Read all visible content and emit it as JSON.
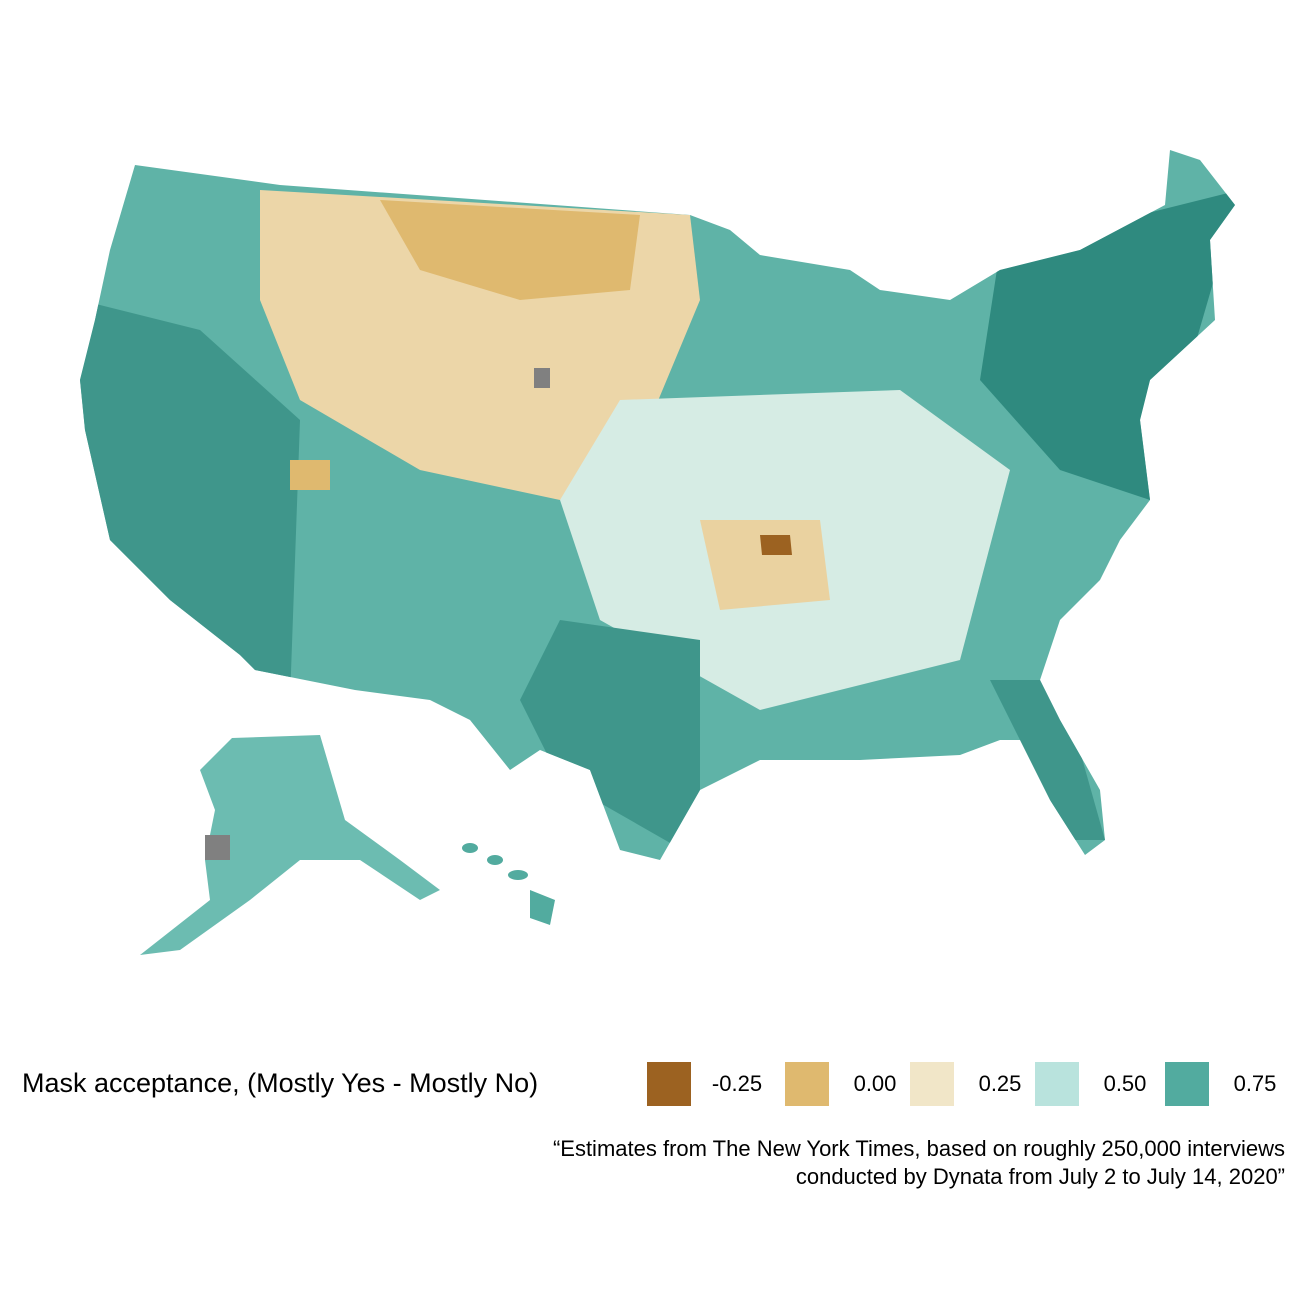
{
  "legend": {
    "title": "Mask acceptance, (Mostly Yes - Mostly No)",
    "breaks": [
      -0.25,
      {
        "value": 0,
        "label": "0.00"
      },
      0.25,
      {
        "value": 0.5,
        "label": "0.50"
      },
      0.75
    ],
    "colors": [
      "#9c6221",
      "#dfb96f",
      "#f1e6c8",
      "#b9e3dd",
      "#52ab9f"
    ]
  },
  "caption": [
    "“Estimates from The New York Times, based on roughly 250,000 interviews",
    "conducted by Dynata from July 2 to July 14, 2020”"
  ]
}
